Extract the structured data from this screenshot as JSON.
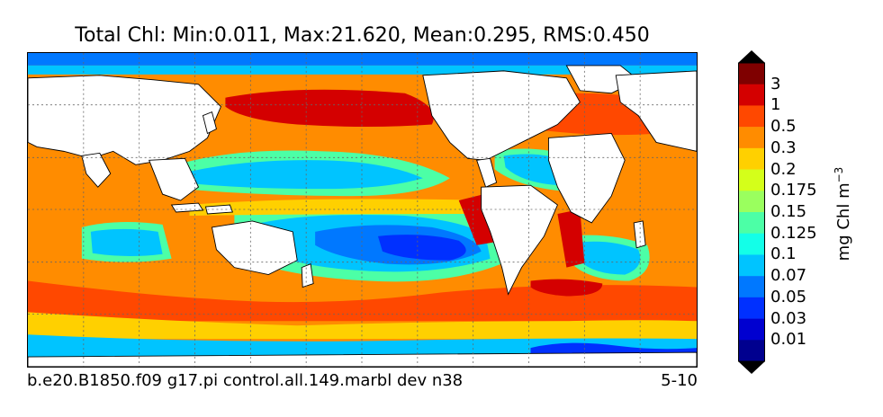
{
  "title": "Total Chl: Min:0.011, Max:21.620, Mean:0.295, RMS:0.450",
  "map": {
    "projection": "cylindrical",
    "gridlines": "dashed",
    "grid_on": true
  },
  "colorbar": {
    "label": "mg Chl m",
    "label_exponent": "−3",
    "extend": "both",
    "ticks": [
      "3",
      "1",
      "0.5",
      "0.3",
      "0.2",
      "0.175",
      "0.15",
      "0.125",
      "0.1",
      "0.07",
      "0.05",
      "0.03",
      "0.01"
    ],
    "colors": [
      "#7f0000",
      "#d40000",
      "#ff4800",
      "#ff8c00",
      "#ffd000",
      "#d4ff1a",
      "#9aff5e",
      "#4cffa6",
      "#13ffe8",
      "#00c4ff",
      "#0078ff",
      "#0030ff",
      "#0000d0",
      "#00008f"
    ],
    "top_arrow_color": "#000000",
    "bottom_arrow_color": "#000000"
  },
  "footer": {
    "case_name": "b.e20.B1850.f09 g17.pi control.all.149.marbl dev n38",
    "period": "5-10"
  }
}
